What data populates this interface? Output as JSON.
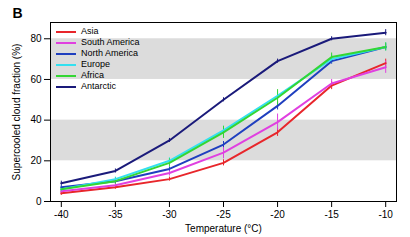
{
  "chart_data": {
    "type": "line",
    "title": "B",
    "x_label": "Temperature (°C)",
    "y_label": "Supercooled cloud fraction (%)",
    "x": [
      -40,
      -35,
      -30,
      -25,
      -20,
      -15,
      -10
    ],
    "xlim": [
      -41,
      -9
    ],
    "xticks": [
      -40,
      -35,
      -30,
      -25,
      -20,
      -15,
      -10
    ],
    "ylim": [
      0,
      88
    ],
    "yticks": [
      0,
      20,
      40,
      60,
      80
    ],
    "shaded_bands": [
      [
        20,
        40
      ],
      [
        60,
        80
      ]
    ],
    "grid": false,
    "legend": "top-left",
    "marker": "none",
    "line_style": "solid",
    "series": [
      {
        "name": "Asia",
        "color": "#e8262b",
        "values": [
          4,
          7,
          11,
          19,
          34,
          57,
          68
        ],
        "errors": [
          1,
          1,
          1,
          1.5,
          2,
          2,
          2
        ]
      },
      {
        "name": "South America",
        "color": "#e040e0",
        "values": [
          5,
          8,
          14,
          24,
          39,
          58,
          66
        ],
        "errors": [
          1,
          1,
          1.5,
          3,
          4,
          2,
          3
        ]
      },
      {
        "name": "North America",
        "color": "#1f3fbf",
        "values": [
          7,
          10,
          16,
          28,
          47,
          69,
          76
        ],
        "errors": [
          1,
          1,
          1,
          1.5,
          2,
          1.5,
          1.5
        ]
      },
      {
        "name": "Europe",
        "color": "#33e0f0",
        "values": [
          6,
          11,
          20,
          35,
          52,
          70,
          76
        ],
        "errors": [
          1,
          1,
          1.5,
          2,
          2,
          2,
          2
        ]
      },
      {
        "name": "Africa",
        "color": "#33d633",
        "values": [
          6,
          10,
          19,
          34,
          51,
          71,
          76
        ],
        "errors": [
          1,
          1.5,
          2,
          3,
          4,
          2,
          2
        ]
      },
      {
        "name": "Antarctic",
        "color": "#1a1a7a",
        "values": [
          9,
          15,
          30,
          50,
          69,
          80,
          83
        ],
        "errors": [
          1,
          1,
          1,
          1,
          1,
          1,
          1.5
        ]
      }
    ]
  }
}
